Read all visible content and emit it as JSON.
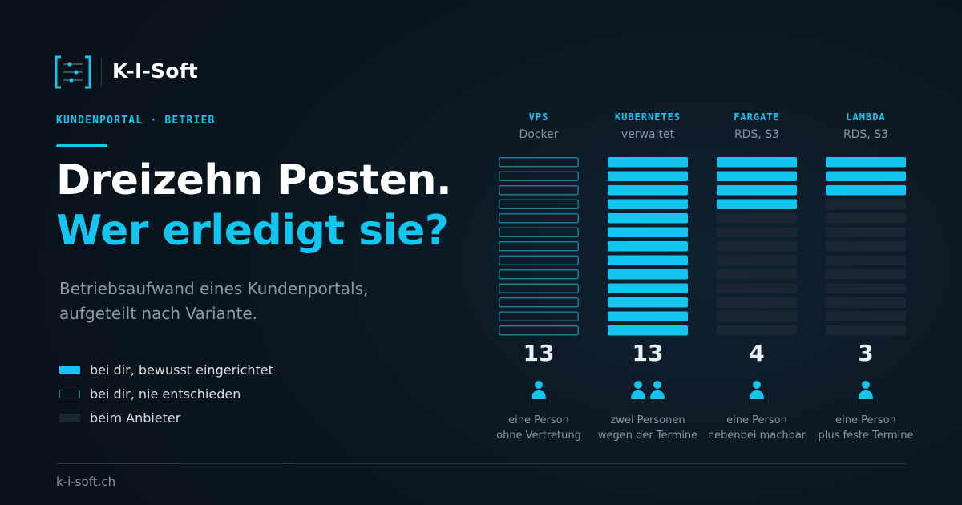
{
  "header": {
    "brand": "K-I-Soft",
    "eyebrow": "KUNDENPORTAL · BETRIEB",
    "title_line1": "Dreizehn Posten.",
    "title_line2": "Wer erledigt sie?",
    "subtitle": "Betriebsaufwand eines Kundenportals, aufgeteilt nach Variante."
  },
  "legend": [
    {
      "label": "bei dir, bewusst eingerichtet",
      "style": "filled"
    },
    {
      "label": "bei dir, nie entschieden",
      "style": "outline"
    },
    {
      "label": "beim Anbieter",
      "style": "provider"
    }
  ],
  "colors": {
    "accent": "#12c6f0",
    "outline": "#1f7a93",
    "provider": "#1a2631",
    "people_icon": "#12c6f0"
  },
  "chart_data": {
    "type": "bar",
    "total_items": 13,
    "categories": [
      "VPS",
      "KUBERNETES",
      "FARGATE",
      "LAMBDA"
    ],
    "columns": [
      {
        "name": "VPS",
        "sub": "Docker",
        "count": 13,
        "count_label": "13",
        "style": "outline",
        "people": 1,
        "note_line1": "eine Person",
        "note_line2": "ohne Vertretung"
      },
      {
        "name": "KUBERNETES",
        "sub": "verwaltet",
        "count": 13,
        "count_label": "13",
        "style": "filled",
        "people": 2,
        "note_line1": "zwei Personen",
        "note_line2": "wegen der Termine"
      },
      {
        "name": "FARGATE",
        "sub": "RDS, S3",
        "count": 4,
        "count_label": "4",
        "style": "filled",
        "people": 1,
        "note_line1": "eine Person",
        "note_line2": "nebenbei machbar"
      },
      {
        "name": "LAMBDA",
        "sub": "RDS, S3",
        "count": 3,
        "count_label": "3",
        "style": "filled",
        "people": 1,
        "note_line1": "eine Person",
        "note_line2": "plus feste Termine"
      }
    ]
  },
  "footer": {
    "url": "k-i-soft.ch"
  }
}
